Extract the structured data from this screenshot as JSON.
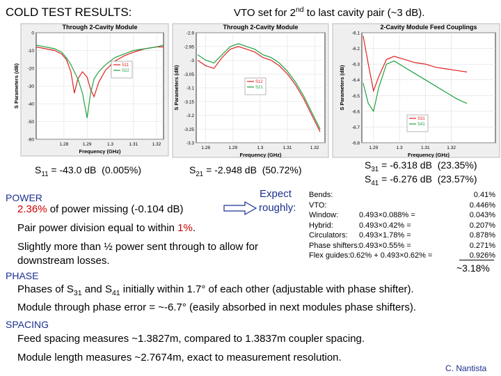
{
  "header": {
    "title": "COLD TEST RESULTS:",
    "subtitle": [
      "VTO set for 2",
      "nd",
      " to last cavity pair (~3 dB)."
    ]
  },
  "chart_data": [
    {
      "type": "line",
      "title": "Through 2-Cavity Module",
      "x_label": "Frequency (GHz)",
      "y_label": "S Parameters (dB)",
      "xlim": [
        1.268,
        1.323
      ],
      "ylim": [
        -60,
        0
      ],
      "xticks": [
        1.28,
        1.29,
        1.3,
        1.31,
        1.32
      ],
      "yticks": [
        0,
        -10,
        -20,
        -30,
        -40,
        -50,
        -60
      ],
      "x": [
        1.268,
        1.272,
        1.276,
        1.279,
        1.281,
        1.283,
        1.2845,
        1.286,
        1.288,
        1.29,
        1.2915,
        1.293,
        1.295,
        1.298,
        1.302,
        1.306,
        1.31,
        1.315,
        1.32,
        1.323
      ],
      "series": [
        {
          "name": "S11",
          "color": "#e02020",
          "values": [
            -8,
            -9,
            -10,
            -12,
            -15,
            -22,
            -34,
            -26,
            -22,
            -25,
            -32,
            -36,
            -28,
            -21,
            -16,
            -13,
            -11,
            -9,
            -8,
            -8
          ]
        },
        {
          "name": "S22",
          "color": "#20a040",
          "values": [
            -7,
            -8,
            -9,
            -11,
            -14,
            -18,
            -22,
            -26,
            -34,
            -48,
            -34,
            -26,
            -22,
            -18,
            -14,
            -12,
            -10,
            -9,
            -8,
            -7
          ]
        }
      ]
    },
    {
      "type": "line",
      "title": "Through 2-Cavity Module",
      "x_label": "Frequency (GHz)",
      "y_label": "S Parameters (dB)",
      "xlim": [
        1.2765,
        1.3238
      ],
      "ylim": [
        -3.3,
        -2.9
      ],
      "xticks": [
        1.28,
        1.29,
        1.3,
        1.31,
        1.32
      ],
      "yticks": [
        -2.9,
        -2.95,
        -3,
        -3.05,
        -3.1,
        -3.15,
        -3.2,
        -3.25,
        -3.3
      ],
      "x": [
        1.277,
        1.28,
        1.283,
        1.286,
        1.289,
        1.292,
        1.295,
        1.298,
        1.301,
        1.304,
        1.307,
        1.31,
        1.313,
        1.316,
        1.319,
        1.322
      ],
      "series": [
        {
          "name": "S12",
          "color": "#e02020",
          "values": [
            -3.0,
            -3.02,
            -3.03,
            -2.99,
            -2.96,
            -2.95,
            -2.96,
            -2.97,
            -2.99,
            -3.0,
            -3.02,
            -3.05,
            -3.09,
            -3.14,
            -3.2,
            -3.26
          ]
        },
        {
          "name": "S21",
          "color": "#20a040",
          "values": [
            -2.98,
            -3.0,
            -3.01,
            -2.98,
            -2.95,
            -2.94,
            -2.95,
            -2.96,
            -2.98,
            -2.99,
            -3.01,
            -3.04,
            -3.08,
            -3.13,
            -3.19,
            -3.25
          ]
        }
      ]
    },
    {
      "type": "line",
      "title": "2-Cavity Module Feed Couplings",
      "x_label": "Frequency (GHz)",
      "y_label": "S Parameters (dB)",
      "xlim": [
        1.2855,
        1.337
      ],
      "ylim": [
        -6.8,
        -6.1
      ],
      "xticks": [
        1.29,
        1.3,
        1.31,
        1.32
      ],
      "yticks": [
        -6.1,
        -6.2,
        -6.3,
        -6.4,
        -6.5,
        -6.6,
        -6.7,
        -6.8
      ],
      "x": [
        1.286,
        1.288,
        1.29,
        1.292,
        1.295,
        1.298,
        1.302,
        1.306,
        1.31,
        1.314,
        1.318,
        1.322,
        1.326
      ],
      "series": [
        {
          "name": "S31",
          "color": "#e02020",
          "values": [
            -6.12,
            -6.3,
            -6.47,
            -6.38,
            -6.27,
            -6.25,
            -6.27,
            -6.29,
            -6.3,
            -6.32,
            -6.33,
            -6.34,
            -6.35
          ]
        },
        {
          "name": "S41",
          "color": "#20a040",
          "values": [
            -6.42,
            -6.55,
            -6.6,
            -6.45,
            -6.3,
            -6.28,
            -6.32,
            -6.36,
            -6.4,
            -6.44,
            -6.48,
            -6.52,
            -6.55
          ]
        }
      ]
    }
  ],
  "results": {
    "s11": [
      "S",
      "11",
      " = -43.0 dB  (0.005%)"
    ],
    "s21": [
      "S",
      "21",
      " = -2.948 dB  (50.72%)"
    ],
    "s31": [
      "S",
      "31",
      " = -6.318 dB  (23.35%)"
    ],
    "s41": [
      "S",
      "41",
      " = -6.276 dB  (23.57%)"
    ]
  },
  "power": {
    "heading": "POWER",
    "line1": [
      "2.36%",
      " of power missing (-0.104 dB)"
    ],
    "line2": [
      "Pair power division equal to within ",
      "1%",
      "."
    ],
    "line3": "Slightly more than ½ power sent through to allow for downstream losses."
  },
  "expect": [
    "Expect",
    "roughly:"
  ],
  "losses": {
    "rows": [
      {
        "label": "Bends:",
        "value": "0.41%"
      },
      {
        "label": "VTO:",
        "value": "0.446%"
      },
      {
        "label": "Window:",
        "calc": "0.493×0.088% =",
        "value": "0.043%"
      },
      {
        "label": "Hybrid:",
        "calc": "0.493×0.42% =",
        "value": "0.207%"
      },
      {
        "label": "Circulators:",
        "calc": "0.493×1.78% =",
        "value": "0.878%"
      },
      {
        "label": "Phase shifters:",
        "calc": "0.493×0.55% =",
        "value": "0.271%"
      },
      {
        "label": "Flex guides:",
        "calc": "0.62% + 0.493×0.62% =",
        "value": "0.926%"
      }
    ],
    "total": "~3.18%"
  },
  "phase": {
    "heading": "PHASE",
    "line1": [
      "Phases of S",
      "31",
      " and S",
      "41",
      " initially within 1.7° of each other (adjustable with phase shifter)."
    ],
    "line2": "Module through phase error = ~-6.7° (easily absorbed in next modules phase shifters)."
  },
  "spacing": {
    "heading": "SPACING",
    "line1": "Feed spacing measures ~1.3827m, compared to 1.3837m coupler spacing.",
    "line2": "Module length measures ~2.7674m, exact to measurement resolution."
  },
  "footer": "C. Nantista"
}
